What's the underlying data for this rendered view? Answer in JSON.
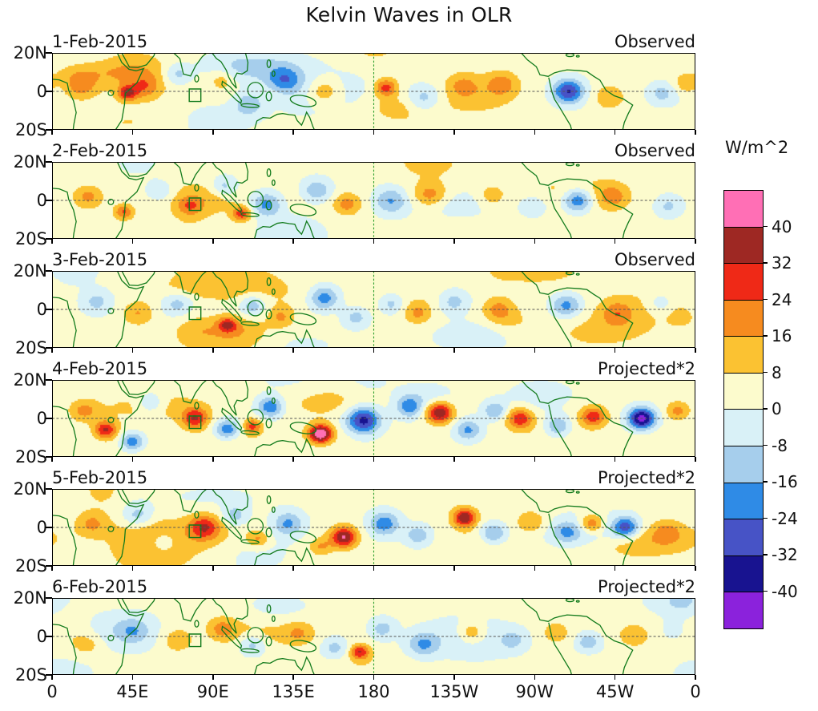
{
  "title": "Kelvin Waves in OLR",
  "colorbar": {
    "unit_label": "W/m^2",
    "tick_labels": [
      "40",
      "32",
      "24",
      "16",
      "8",
      "0",
      "-8",
      "-16",
      "-24",
      "-32",
      "-40"
    ],
    "colors_top_to_bottom": [
      "#FF6FB5",
      "#9E2823",
      "#EF2917",
      "#F68B1F",
      "#FBC232",
      "#FCFBCD",
      "#D9F1F7",
      "#A6CEEC",
      "#2F8BE6",
      "#4753C6",
      "#181390",
      "#8B22DC"
    ]
  },
  "x_axis_tick_labels": [
    "0",
    "45E",
    "90E",
    "135E",
    "180",
    "135W",
    "90W",
    "45W",
    "0"
  ],
  "y_axis_tick_labels": [
    "20N",
    "0",
    "20S"
  ],
  "colors": {
    "coastline": "#117A1B",
    "equator_line": "#555555",
    "dateline": "#2FA02F",
    "frame": "#000000",
    "background": "#FFFFFF"
  },
  "chart_data": {
    "type": "heatmap",
    "subtype": "filled_contour_longitude_latitude_maps",
    "title": "Kelvin Waves in OLR",
    "units": "W/m^2",
    "x_axis": {
      "tick_labels": [
        "0",
        "45E",
        "90E",
        "135E",
        "180",
        "135W",
        "90W",
        "45W",
        "0"
      ],
      "ticks_deg": [
        0,
        45,
        90,
        135,
        180,
        225,
        270,
        315,
        360
      ],
      "range_deg": [
        0,
        360
      ]
    },
    "y_axis": {
      "tick_labels": [
        "20N",
        "0",
        "20S"
      ],
      "range_deg": [
        20,
        -20
      ]
    },
    "contour_levels_wm2": [
      -40,
      -32,
      -24,
      -16,
      -8,
      0,
      8,
      16,
      24,
      32,
      40
    ],
    "palette_low_to_high": [
      "#8B22DC",
      "#181390",
      "#4753C6",
      "#2F8BE6",
      "#A6CEEC",
      "#D9F1F7",
      "#FCFBCD",
      "#FBC232",
      "#F68B1F",
      "#EF2917",
      "#9E2823",
      "#FF6FB5"
    ],
    "reference_lines": {
      "equator_lat_deg": 0,
      "dateline_lon_deg": 180
    },
    "region_marker_box": {
      "lon_deg_center": 80,
      "lat_deg_center": -2,
      "width_deg": 6.5,
      "height_deg": 6.5
    },
    "panels": [
      {
        "date": "1-Feb-2015",
        "source": "Observed",
        "anomaly_centers": [
          {
            "lon_deg": 16,
            "lat_deg": 3,
            "peak_wm2": 18,
            "radius_deg": 9
          },
          {
            "lon_deg": 42,
            "lat_deg": -1,
            "peak_wm2": 27,
            "radius_deg": 5
          },
          {
            "lon_deg": 52,
            "lat_deg": 2,
            "peak_wm2": 14,
            "radius_deg": 8
          },
          {
            "lon_deg": 70,
            "lat_deg": 9,
            "peak_wm2": -15,
            "radius_deg": 7
          },
          {
            "lon_deg": 95,
            "lat_deg": 6,
            "peak_wm2": 12,
            "radius_deg": 7
          },
          {
            "lon_deg": 110,
            "lat_deg": -6,
            "peak_wm2": -18,
            "radius_deg": 8
          },
          {
            "lon_deg": 130,
            "lat_deg": 6,
            "peak_wm2": -20,
            "radius_deg": 9
          },
          {
            "lon_deg": 152,
            "lat_deg": 0,
            "peak_wm2": 17,
            "radius_deg": 9
          },
          {
            "lon_deg": 187,
            "lat_deg": 2,
            "peak_wm2": 25,
            "radius_deg": 6
          },
          {
            "lon_deg": 208,
            "lat_deg": -4,
            "peak_wm2": -17,
            "radius_deg": 9
          },
          {
            "lon_deg": 230,
            "lat_deg": 3,
            "peak_wm2": 12,
            "radius_deg": 8
          },
          {
            "lon_deg": 252,
            "lat_deg": 4,
            "peak_wm2": 15,
            "radius_deg": 8
          },
          {
            "lon_deg": 289,
            "lat_deg": 0,
            "peak_wm2": -35,
            "radius_deg": 8
          },
          {
            "lon_deg": 312,
            "lat_deg": -3,
            "peak_wm2": 13,
            "radius_deg": 8
          },
          {
            "lon_deg": 341,
            "lat_deg": -1,
            "peak_wm2": -13,
            "radius_deg": 7
          },
          {
            "lon_deg": 355,
            "lat_deg": 4,
            "peak_wm2": 13,
            "radius_deg": 6
          }
        ]
      },
      {
        "date": "2-Feb-2015",
        "source": "Observed",
        "anomaly_centers": [
          {
            "lon_deg": 20,
            "lat_deg": 2,
            "peak_wm2": 16,
            "radius_deg": 8
          },
          {
            "lon_deg": 40,
            "lat_deg": -6,
            "peak_wm2": 22,
            "radius_deg": 5
          },
          {
            "lon_deg": 60,
            "lat_deg": 5,
            "peak_wm2": -14,
            "radius_deg": 7
          },
          {
            "lon_deg": 77,
            "lat_deg": -3,
            "peak_wm2": 18,
            "radius_deg": 7
          },
          {
            "lon_deg": 96,
            "lat_deg": 7,
            "peak_wm2": -16,
            "radius_deg": 7
          },
          {
            "lon_deg": 106,
            "lat_deg": -7,
            "peak_wm2": 26,
            "radius_deg": 5
          },
          {
            "lon_deg": 120,
            "lat_deg": -2,
            "peak_wm2": -22,
            "radius_deg": 8
          },
          {
            "lon_deg": 148,
            "lat_deg": 5,
            "peak_wm2": -18,
            "radius_deg": 8
          },
          {
            "lon_deg": 165,
            "lat_deg": -2,
            "peak_wm2": 16,
            "radius_deg": 7
          },
          {
            "lon_deg": 190,
            "lat_deg": 0,
            "peak_wm2": -20,
            "radius_deg": 9
          },
          {
            "lon_deg": 212,
            "lat_deg": 3,
            "peak_wm2": 14,
            "radius_deg": 8
          },
          {
            "lon_deg": 246,
            "lat_deg": 2,
            "peak_wm2": 12,
            "radius_deg": 8
          },
          {
            "lon_deg": 270,
            "lat_deg": -3,
            "peak_wm2": -12,
            "radius_deg": 7
          },
          {
            "lon_deg": 294,
            "lat_deg": 0,
            "peak_wm2": -30,
            "radius_deg": 8
          },
          {
            "lon_deg": 314,
            "lat_deg": 2,
            "peak_wm2": 15,
            "radius_deg": 8
          },
          {
            "lon_deg": 345,
            "lat_deg": -3,
            "peak_wm2": -12,
            "radius_deg": 7
          }
        ]
      },
      {
        "date": "3-Feb-2015",
        "source": "Observed",
        "anomaly_centers": [
          {
            "lon_deg": 25,
            "lat_deg": 4,
            "peak_wm2": -13,
            "radius_deg": 8
          },
          {
            "lon_deg": 48,
            "lat_deg": -2,
            "peak_wm2": 14,
            "radius_deg": 8
          },
          {
            "lon_deg": 70,
            "lat_deg": 3,
            "peak_wm2": -14,
            "radius_deg": 8
          },
          {
            "lon_deg": 98,
            "lat_deg": -8,
            "peak_wm2": 24,
            "radius_deg": 5
          },
          {
            "lon_deg": 112,
            "lat_deg": 2,
            "peak_wm2": -18,
            "radius_deg": 7
          },
          {
            "lon_deg": 128,
            "lat_deg": -4,
            "peak_wm2": 14,
            "radius_deg": 7
          },
          {
            "lon_deg": 152,
            "lat_deg": 6,
            "peak_wm2": -24,
            "radius_deg": 8
          },
          {
            "lon_deg": 170,
            "lat_deg": -4,
            "peak_wm2": -14,
            "radius_deg": 7
          },
          {
            "lon_deg": 190,
            "lat_deg": 3,
            "peak_wm2": -16,
            "radius_deg": 7
          },
          {
            "lon_deg": 205,
            "lat_deg": -2,
            "peak_wm2": 14,
            "radius_deg": 7
          },
          {
            "lon_deg": 225,
            "lat_deg": 4,
            "peak_wm2": -14,
            "radius_deg": 8
          },
          {
            "lon_deg": 250,
            "lat_deg": 0,
            "peak_wm2": 16,
            "radius_deg": 8
          },
          {
            "lon_deg": 288,
            "lat_deg": 2,
            "peak_wm2": -22,
            "radius_deg": 8
          },
          {
            "lon_deg": 316,
            "lat_deg": -2,
            "peak_wm2": 14,
            "radius_deg": 8
          },
          {
            "lon_deg": 340,
            "lat_deg": 3,
            "peak_wm2": -10,
            "radius_deg": 7
          },
          {
            "lon_deg": 352,
            "lat_deg": -4,
            "peak_wm2": 10,
            "radius_deg": 6
          }
        ]
      },
      {
        "date": "4-Feb-2015",
        "source": "Projected*2",
        "anomaly_centers": [
          {
            "lon_deg": 18,
            "lat_deg": 4,
            "peak_wm2": 14,
            "radius_deg": 7
          },
          {
            "lon_deg": 30,
            "lat_deg": -6,
            "peak_wm2": 30,
            "radius_deg": 6
          },
          {
            "lon_deg": 45,
            "lat_deg": -12,
            "peak_wm2": -24,
            "radius_deg": 6
          },
          {
            "lon_deg": 55,
            "lat_deg": 8,
            "peak_wm2": -16,
            "radius_deg": 7
          },
          {
            "lon_deg": 80,
            "lat_deg": 0,
            "peak_wm2": 28,
            "radius_deg": 7
          },
          {
            "lon_deg": 98,
            "lat_deg": -6,
            "peak_wm2": -26,
            "radius_deg": 7
          },
          {
            "lon_deg": 112,
            "lat_deg": -4,
            "peak_wm2": 24,
            "radius_deg": 5
          },
          {
            "lon_deg": 122,
            "lat_deg": 6,
            "peak_wm2": -26,
            "radius_deg": 7
          },
          {
            "lon_deg": 150,
            "lat_deg": -8,
            "peak_wm2": 46,
            "radius_deg": 6
          },
          {
            "lon_deg": 174,
            "lat_deg": -1,
            "peak_wm2": -38,
            "radius_deg": 9
          },
          {
            "lon_deg": 200,
            "lat_deg": 6,
            "peak_wm2": -22,
            "radius_deg": 7
          },
          {
            "lon_deg": 217,
            "lat_deg": 3,
            "peak_wm2": 38,
            "radius_deg": 7
          },
          {
            "lon_deg": 233,
            "lat_deg": -6,
            "peak_wm2": -20,
            "radius_deg": 7
          },
          {
            "lon_deg": 248,
            "lat_deg": 4,
            "peak_wm2": -18,
            "radius_deg": 6
          },
          {
            "lon_deg": 262,
            "lat_deg": 0,
            "peak_wm2": 28,
            "radius_deg": 7
          },
          {
            "lon_deg": 283,
            "lat_deg": -4,
            "peak_wm2": -20,
            "radius_deg": 7
          },
          {
            "lon_deg": 303,
            "lat_deg": 1,
            "peak_wm2": 26,
            "radius_deg": 7
          },
          {
            "lon_deg": 330,
            "lat_deg": 0,
            "peak_wm2": -47,
            "radius_deg": 7
          },
          {
            "lon_deg": 350,
            "lat_deg": 4,
            "peak_wm2": 16,
            "radius_deg": 6
          }
        ]
      },
      {
        "date": "5-Feb-2015",
        "source": "Projected*2",
        "anomaly_centers": [
          {
            "lon_deg": 22,
            "lat_deg": 2,
            "peak_wm2": 14,
            "radius_deg": 8
          },
          {
            "lon_deg": 48,
            "lat_deg": 6,
            "peak_wm2": -16,
            "radius_deg": 8
          },
          {
            "lon_deg": 62,
            "lat_deg": -8,
            "peak_wm2": -14,
            "radius_deg": 6
          },
          {
            "lon_deg": 85,
            "lat_deg": 0,
            "peak_wm2": 24,
            "radius_deg": 8
          },
          {
            "lon_deg": 102,
            "lat_deg": 6,
            "peak_wm2": -16,
            "radius_deg": 7
          },
          {
            "lon_deg": 115,
            "lat_deg": -6,
            "peak_wm2": 16,
            "radius_deg": 6
          },
          {
            "lon_deg": 132,
            "lat_deg": 2,
            "peak_wm2": -20,
            "radius_deg": 8
          },
          {
            "lon_deg": 150,
            "lat_deg": -10,
            "peak_wm2": 14,
            "radius_deg": 6
          },
          {
            "lon_deg": 163,
            "lat_deg": -5,
            "peak_wm2": 38,
            "radius_deg": 7
          },
          {
            "lon_deg": 186,
            "lat_deg": 2,
            "peak_wm2": -24,
            "radius_deg": 8
          },
          {
            "lon_deg": 205,
            "lat_deg": -4,
            "peak_wm2": -16,
            "radius_deg": 7
          },
          {
            "lon_deg": 231,
            "lat_deg": 5,
            "peak_wm2": 36,
            "radius_deg": 6
          },
          {
            "lon_deg": 247,
            "lat_deg": -3,
            "peak_wm2": -22,
            "radius_deg": 7
          },
          {
            "lon_deg": 268,
            "lat_deg": 3,
            "peak_wm2": 14,
            "radius_deg": 7
          },
          {
            "lon_deg": 288,
            "lat_deg": -2,
            "peak_wm2": -16,
            "radius_deg": 7
          },
          {
            "lon_deg": 302,
            "lat_deg": 2,
            "peak_wm2": 22,
            "radius_deg": 6
          },
          {
            "lon_deg": 321,
            "lat_deg": 0,
            "peak_wm2": -32,
            "radius_deg": 7
          },
          {
            "lon_deg": 344,
            "lat_deg": -2,
            "peak_wm2": 12,
            "radius_deg": 7
          }
        ]
      },
      {
        "date": "6-Feb-2015",
        "source": "Projected*2",
        "anomaly_centers": [
          {
            "lon_deg": 20,
            "lat_deg": -4,
            "peak_wm2": 10,
            "radius_deg": 8
          },
          {
            "lon_deg": 45,
            "lat_deg": 3,
            "peak_wm2": -12,
            "radius_deg": 8
          },
          {
            "lon_deg": 70,
            "lat_deg": -2,
            "peak_wm2": 12,
            "radius_deg": 8
          },
          {
            "lon_deg": 95,
            "lat_deg": 4,
            "peak_wm2": 14,
            "radius_deg": 7
          },
          {
            "lon_deg": 112,
            "lat_deg": -4,
            "peak_wm2": -16,
            "radius_deg": 7
          },
          {
            "lon_deg": 138,
            "lat_deg": 2,
            "peak_wm2": 12,
            "radius_deg": 8
          },
          {
            "lon_deg": 158,
            "lat_deg": -6,
            "peak_wm2": -14,
            "radius_deg": 7
          },
          {
            "lon_deg": 172,
            "lat_deg": -8,
            "peak_wm2": 28,
            "radius_deg": 5
          },
          {
            "lon_deg": 185,
            "lat_deg": 4,
            "peak_wm2": -14,
            "radius_deg": 7
          },
          {
            "lon_deg": 208,
            "lat_deg": -4,
            "peak_wm2": -18,
            "radius_deg": 8
          },
          {
            "lon_deg": 235,
            "lat_deg": 2,
            "peak_wm2": 16,
            "radius_deg": 7
          },
          {
            "lon_deg": 258,
            "lat_deg": -2,
            "peak_wm2": -12,
            "radius_deg": 7
          },
          {
            "lon_deg": 282,
            "lat_deg": 2,
            "peak_wm2": 12,
            "radius_deg": 7
          },
          {
            "lon_deg": 300,
            "lat_deg": -3,
            "peak_wm2": -16,
            "radius_deg": 6
          },
          {
            "lon_deg": 325,
            "lat_deg": 0,
            "peak_wm2": 12,
            "radius_deg": 8
          },
          {
            "lon_deg": 348,
            "lat_deg": 3,
            "peak_wm2": -10,
            "radius_deg": 7
          }
        ]
      }
    ]
  }
}
